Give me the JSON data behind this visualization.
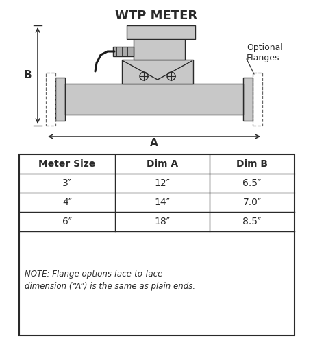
{
  "title": "WTP METER",
  "title_fontsize": 13,
  "title_fontweight": "bold",
  "bg_color": "#ffffff",
  "line_color": "#2a2a2a",
  "gray_fill": "#c8c8c8",
  "gray_dark": "#aaaaaa",
  "table_headers": [
    "Meter Size",
    "Dim A",
    "Dim B"
  ],
  "table_rows": [
    [
      "3″",
      "12″",
      "6.5″"
    ],
    [
      "4″",
      "14″",
      "7.0″"
    ],
    [
      "6″",
      "18″",
      "8.5″"
    ]
  ],
  "table_note": "NOTE: Flange options face-to-face\ndimension (“A”) is the same as plain ends.",
  "optional_flanges_label": "Optional\nFlanges"
}
